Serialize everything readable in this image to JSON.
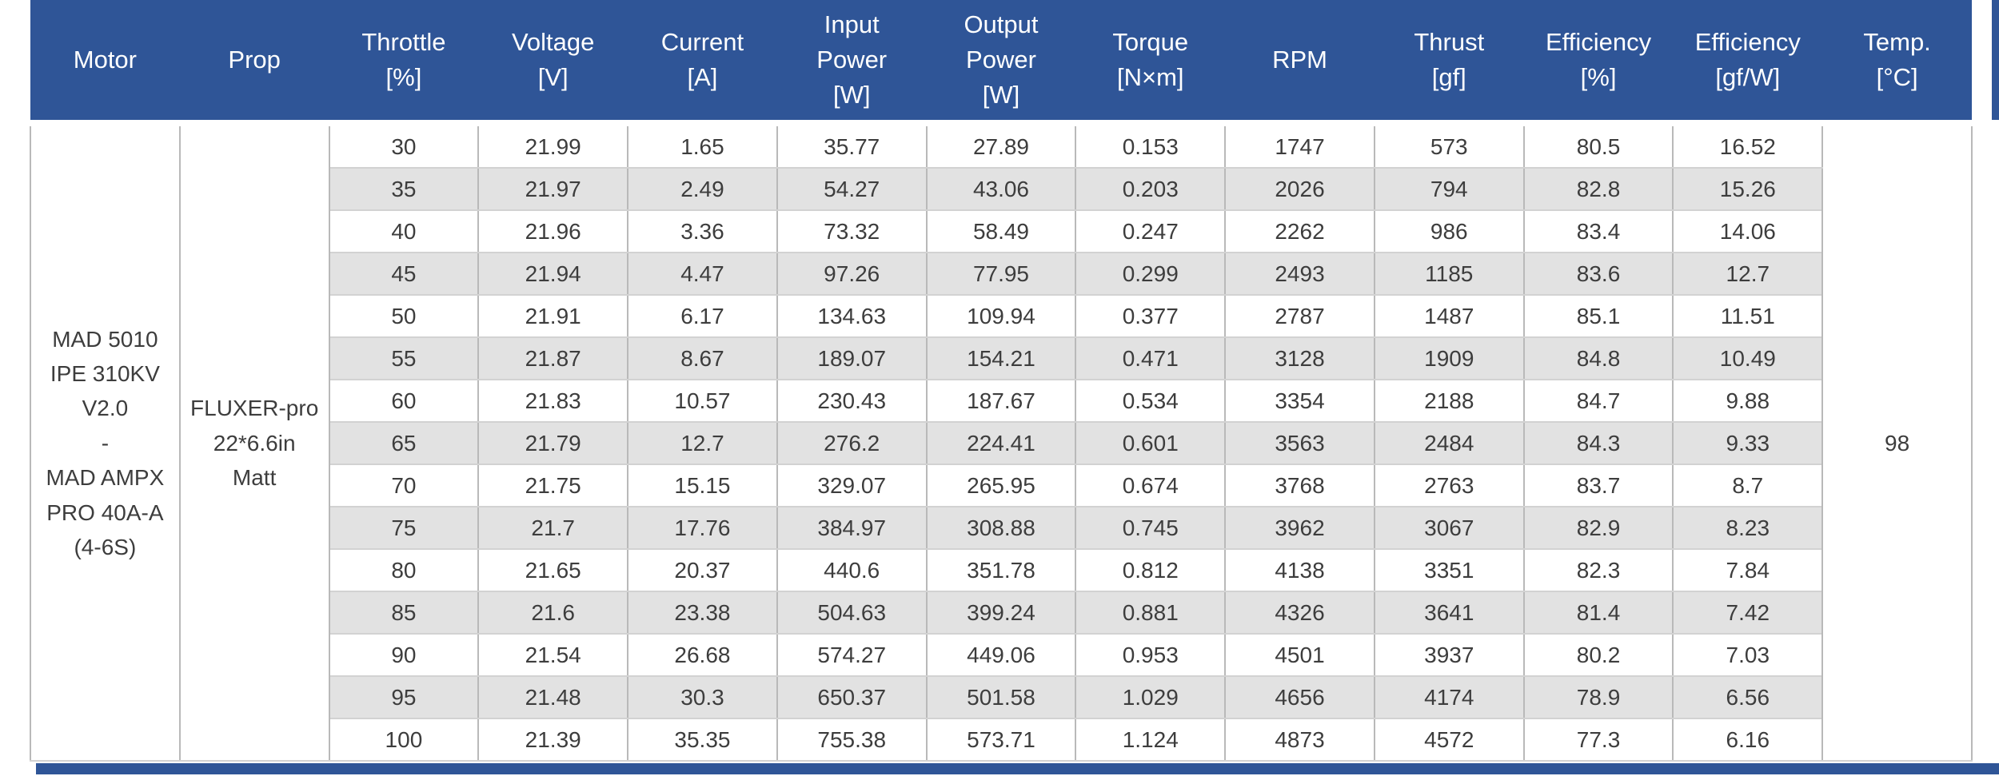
{
  "colors": {
    "header_blue": "#2f5597",
    "zebra_gray": "#e2e2e2",
    "border_vertical": "#b9b9b9",
    "border_horizontal": "#d2d2d2",
    "body_text": "#3d3d3d",
    "header_text": "#ffffff"
  },
  "chart_data": {
    "type": "table",
    "title": "",
    "columns": [
      {
        "key": "motor",
        "label": "Motor",
        "unit": ""
      },
      {
        "key": "prop",
        "label": "Prop",
        "unit": ""
      },
      {
        "key": "throttle",
        "label": "Throttle",
        "unit": "[%]"
      },
      {
        "key": "voltage",
        "label": "Voltage",
        "unit": "[V]"
      },
      {
        "key": "current",
        "label": "Current",
        "unit": "[A]"
      },
      {
        "key": "input_power",
        "label": "Input\nPower",
        "unit": "[W]"
      },
      {
        "key": "output_power",
        "label": "Output\nPower",
        "unit": "[W]"
      },
      {
        "key": "torque",
        "label": "Torque",
        "unit": "[N×m]"
      },
      {
        "key": "rpm",
        "label": "RPM",
        "unit": ""
      },
      {
        "key": "thrust",
        "label": "Thrust",
        "unit": "[gf]"
      },
      {
        "key": "efficiency_pct",
        "label": "Efficiency",
        "unit": "[%]"
      },
      {
        "key": "efficiency_gfw",
        "label": "Efficiency",
        "unit": "[gf/W]"
      },
      {
        "key": "temp",
        "label": "Temp.",
        "unit": "[°C]"
      }
    ],
    "motor": "MAD 5010\nIPE 310KV\nV2.0\n-\nMAD AMPX\nPRO 40A-A\n(4-6S)",
    "prop": "FLUXER-pro\n22*6.6in\nMatt",
    "temp": "98",
    "row_fields": [
      "throttle",
      "voltage",
      "current",
      "input_power",
      "output_power",
      "torque",
      "rpm",
      "thrust",
      "efficiency_pct",
      "efficiency_gfw"
    ],
    "rows": [
      [
        30,
        21.99,
        1.65,
        35.77,
        27.89,
        0.153,
        1747,
        573,
        80.5,
        16.52
      ],
      [
        35,
        21.97,
        2.49,
        54.27,
        43.06,
        0.203,
        2026,
        794,
        82.8,
        15.26
      ],
      [
        40,
        21.96,
        3.36,
        73.32,
        58.49,
        0.247,
        2262,
        986,
        83.4,
        14.06
      ],
      [
        45,
        21.94,
        4.47,
        97.26,
        77.95,
        0.299,
        2493,
        1185,
        83.6,
        12.7
      ],
      [
        50,
        21.91,
        6.17,
        134.63,
        109.94,
        0.377,
        2787,
        1487,
        85.1,
        11.51
      ],
      [
        55,
        21.87,
        8.67,
        189.07,
        154.21,
        0.471,
        3128,
        1909,
        84.8,
        10.49
      ],
      [
        60,
        21.83,
        10.57,
        230.43,
        187.67,
        0.534,
        3354,
        2188,
        84.7,
        9.88
      ],
      [
        65,
        21.79,
        12.7,
        276.2,
        224.41,
        0.601,
        3563,
        2484,
        84.3,
        9.33
      ],
      [
        70,
        21.75,
        15.15,
        329.07,
        265.95,
        0.674,
        3768,
        2763,
        83.7,
        8.7
      ],
      [
        75,
        21.7,
        17.76,
        384.97,
        308.88,
        0.745,
        3962,
        3067,
        82.9,
        8.23
      ],
      [
        80,
        21.65,
        20.37,
        440.6,
        351.78,
        0.812,
        4138,
        3351,
        82.3,
        7.84
      ],
      [
        85,
        21.6,
        23.38,
        504.63,
        399.24,
        0.881,
        4326,
        3641,
        81.4,
        7.42
      ],
      [
        90,
        21.54,
        26.68,
        574.27,
        449.06,
        0.953,
        4501,
        3937,
        80.2,
        7.03
      ],
      [
        95,
        21.48,
        30.3,
        650.37,
        501.58,
        1.029,
        4656,
        4174,
        78.9,
        6.56
      ],
      [
        100,
        21.39,
        35.35,
        755.38,
        573.71,
        1.124,
        4873,
        4572,
        77.3,
        6.16
      ]
    ]
  }
}
